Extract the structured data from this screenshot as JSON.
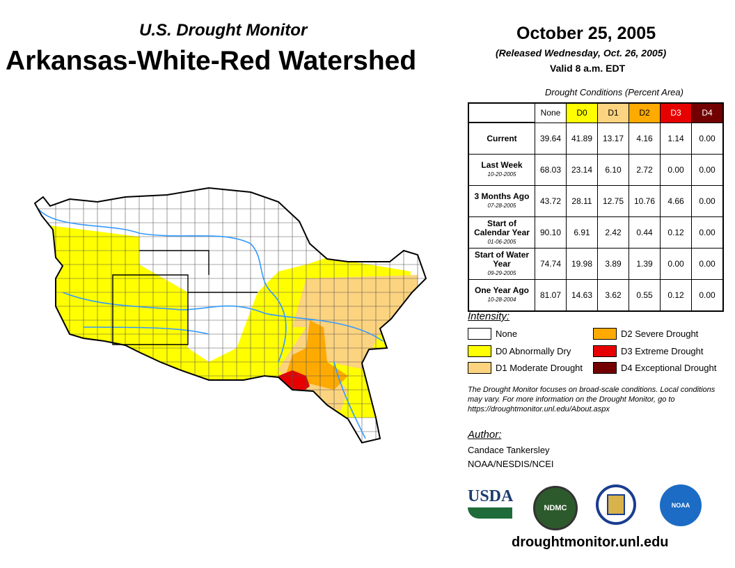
{
  "header": {
    "subtitle": "U.S. Drought Monitor",
    "title": "Arkansas-White-Red Watershed",
    "date": "October 25, 2005",
    "released": "(Released Wednesday, Oct. 26, 2005)",
    "valid": "Valid 8 a.m. EDT"
  },
  "table": {
    "title": "Drought Conditions (Percent Area)",
    "columns": [
      {
        "label": "None",
        "color": "#ffffff",
        "text": "#000"
      },
      {
        "label": "D0",
        "color": "#ffff00",
        "text": "#000"
      },
      {
        "label": "D1",
        "color": "#fcd37f",
        "text": "#000"
      },
      {
        "label": "D2",
        "color": "#ffaa00",
        "text": "#000"
      },
      {
        "label": "D3",
        "color": "#e60000",
        "text": "#fff"
      },
      {
        "label": "D4",
        "color": "#730000",
        "text": "#fff"
      }
    ],
    "rows": [
      {
        "label": "Current",
        "date": "",
        "values": [
          "39.64",
          "41.89",
          "13.17",
          "4.16",
          "1.14",
          "0.00"
        ]
      },
      {
        "label": "Last Week",
        "date": "10-20-2005",
        "values": [
          "68.03",
          "23.14",
          "6.10",
          "2.72",
          "0.00",
          "0.00"
        ]
      },
      {
        "label": "3 Months Ago",
        "date": "07-28-2005",
        "values": [
          "43.72",
          "28.11",
          "12.75",
          "10.76",
          "4.66",
          "0.00"
        ]
      },
      {
        "label": "Start of Calendar Year",
        "date": "01-06-2005",
        "values": [
          "90.10",
          "6.91",
          "2.42",
          "0.44",
          "0.12",
          "0.00"
        ]
      },
      {
        "label": "Start of Water Year",
        "date": "09-29-2005",
        "values": [
          "74.74",
          "19.98",
          "3.89",
          "1.39",
          "0.00",
          "0.00"
        ]
      },
      {
        "label": "One Year Ago",
        "date": "10-28-2004",
        "values": [
          "81.07",
          "14.63",
          "3.62",
          "0.55",
          "0.12",
          "0.00"
        ]
      }
    ]
  },
  "legend": {
    "title": "Intensity:",
    "items": [
      {
        "label": "None",
        "color": "#ffffff"
      },
      {
        "label": "D0 Abnormally Dry",
        "color": "#ffff00"
      },
      {
        "label": "D1 Moderate Drought",
        "color": "#fcd37f"
      },
      {
        "label": "D2 Severe Drought",
        "color": "#ffaa00"
      },
      {
        "label": "D3 Extreme Drought",
        "color": "#e60000"
      },
      {
        "label": "D4 Exceptional Drought",
        "color": "#730000"
      }
    ]
  },
  "note": "The Drought Monitor focuses on broad-scale conditions. Local conditions may vary. For more information on the Drought Monitor, go to https://droughtmonitor.unl.edu/About.aspx",
  "author": {
    "label": "Author:",
    "name": "Candace Tankersley",
    "org": "NOAA/NESDIS/NCEI"
  },
  "logos": {
    "usda": "USDA",
    "ndmc": "NDMC",
    "noaa": "NOAA"
  },
  "url": "droughtmonitor.unl.edu"
}
